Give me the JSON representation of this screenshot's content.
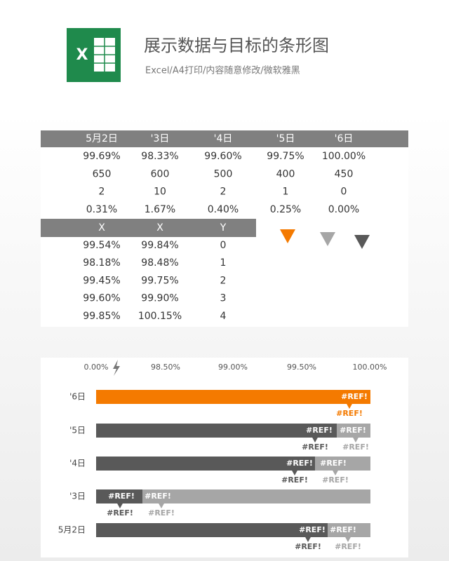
{
  "header": {
    "icon": "X",
    "title": "展示数据与目标的条形图",
    "subtitle": "Excel/A4打印/内容随意修改/微软雅黑"
  },
  "table": {
    "columns": [
      "5月2日",
      "'3日",
      "'4日",
      "'5日",
      "'6日"
    ],
    "rows": [
      [
        "99.69%",
        "98.33%",
        "99.60%",
        "99.75%",
        "100.00%"
      ],
      [
        "650",
        "600",
        "500",
        "400",
        "450"
      ],
      [
        "2",
        "10",
        "2",
        "1",
        "0"
      ],
      [
        "0.31%",
        "1.67%",
        "0.40%",
        "0.25%",
        "0.00%"
      ]
    ]
  },
  "table2": {
    "columns": [
      "X",
      "X",
      "Y"
    ],
    "rows": [
      [
        "99.54%",
        "99.84%",
        "0"
      ],
      [
        "98.18%",
        "98.48%",
        "1"
      ],
      [
        "99.45%",
        "99.75%",
        "2"
      ],
      [
        "99.60%",
        "99.90%",
        "3"
      ],
      [
        "99.85%",
        "100.15%",
        "4"
      ]
    ]
  },
  "chart": {
    "axis_labels": [
      "0.00%",
      "98.50%",
      "99.00%",
      "99.50%",
      "100.00%"
    ],
    "rows": [
      {
        "label": "'6日",
        "bar_labels": [
          "#REF!"
        ],
        "marker_labels": [
          "#REF!"
        ]
      },
      {
        "label": "'5日",
        "bar_labels": [
          "#REF!",
          "#REF!"
        ],
        "marker_labels": [
          "#REF!",
          "#REF!"
        ]
      },
      {
        "label": "'4日",
        "bar_labels": [
          "#REF!",
          "#REF!"
        ],
        "marker_labels": [
          "#REF!",
          "#REF!"
        ]
      },
      {
        "label": "'3日",
        "bar_labels": [
          "#REF!",
          "#REF!"
        ],
        "marker_labels": [
          "#REF!",
          "#REF!"
        ]
      },
      {
        "label": "5月2日",
        "bar_labels": [
          "#REF!",
          "#REF!"
        ],
        "marker_labels": [
          "#REF!",
          "#REF!"
        ]
      }
    ]
  }
}
